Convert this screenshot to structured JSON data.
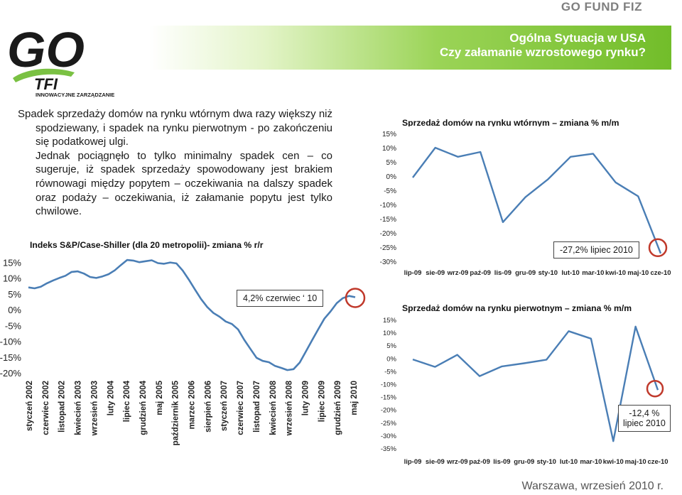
{
  "header": {
    "brand": "GO FUND FIZ",
    "title_line1": "Ogólna Sytuacja w USA",
    "title_line2": "Czy załamanie wzrostowego rynku?"
  },
  "logo": {
    "main": "GO",
    "sub": "TFI",
    "tagline": "INNOWACYJNE ZARZĄDZANIE",
    "color": "#1a1a1a",
    "accent": "#7ac143"
  },
  "intro": {
    "paragraph1": "Spadek sprzedaży domów na rynku wtórnym dwa razy większy niż spodziewany, i spadek na rynku pierwotnym - po zakończeniu się podatkowej ulgi.",
    "paragraph2": "Jednak pociągnęło to tylko minimalny spadek cen – co sugeruje, iż spadek sprzedaży spowodowany jest brakiem równowagi między popytem – oczekiwania na dalszy spadek oraz podaży – oczekiwania, iż załamanie popytu jest tylko chwilowe."
  },
  "footer": {
    "text": "Warszawa, wrzesień 2010 r."
  },
  "chart_data": [
    {
      "id": "case_shiller",
      "type": "line",
      "title": "Indeks S&P/Case-Shiller (dla 20 metropolii)- zmiana % r/r",
      "ylim": [
        -20,
        15
      ],
      "yticks": [
        "15%",
        "10%",
        "5%",
        "0%",
        "-5%",
        "-10%",
        "-15%",
        "-20%"
      ],
      "x_labels": [
        "styczeń 2002",
        "czerwiec 2002",
        "listopad 2002",
        "kwiecień 2003",
        "wrzesień 2003",
        "luty 2004",
        "lipiec 2004",
        "grudzień 2004",
        "maj 2005",
        "październik 2005",
        "marzec 2006",
        "sierpień 2006",
        "styczeń 2007",
        "czerwiec 2007",
        "listopad 2007",
        "kwiecień 2008",
        "wrzesień 2008",
        "luty 2009",
        "lipiec 2009",
        "grudzień 2009",
        "maj 2010"
      ],
      "x": [
        0,
        2,
        4,
        6,
        8,
        10,
        12,
        14,
        16,
        18,
        20,
        22,
        24,
        26,
        28,
        30,
        32,
        34,
        36,
        38,
        40,
        42,
        44,
        46,
        48,
        50,
        52,
        54,
        56,
        58,
        60,
        62,
        64,
        66,
        68,
        70,
        72,
        74,
        76,
        78,
        80,
        82,
        84,
        86,
        88,
        90,
        92,
        94,
        96,
        98,
        100,
        102,
        104,
        106
      ],
      "values": [
        7.3,
        7.0,
        7.5,
        8.6,
        9.5,
        10.3,
        11.0,
        12.2,
        12.4,
        11.7,
        10.6,
        10.3,
        10.8,
        11.5,
        12.7,
        14.4,
        16.0,
        15.8,
        15.3,
        15.6,
        15.9,
        15.0,
        14.8,
        15.2,
        14.9,
        12.7,
        9.8,
        6.7,
        3.6,
        1.1,
        -0.8,
        -2.0,
        -3.5,
        -4.3,
        -6.0,
        -9.3,
        -12.2,
        -15.0,
        -16.0,
        -16.4,
        -17.6,
        -18.2,
        -18.9,
        -18.6,
        -16.5,
        -13.0,
        -9.5,
        -6.0,
        -2.6,
        -0.3,
        2.3,
        3.9,
        4.6,
        4.2
      ],
      "callout": "4,2% czerwiec ‘ 10"
    },
    {
      "id": "existing_home_sales",
      "type": "line",
      "title": "Sprzedaż domów na rynku wtórnym – zmiana % m/m",
      "ylim": [
        -30,
        15
      ],
      "yticks": [
        "15%",
        "10%",
        "5%",
        "0%",
        "-5%",
        "-10%",
        "-15%",
        "-20%",
        "-25%",
        "-30%"
      ],
      "categories": [
        "lip-09",
        "sie-09",
        "wrz-09",
        "paź-09",
        "lis-09",
        "gru-09",
        "sty-10",
        "lut-10",
        "mar-10",
        "kwi-10",
        "maj-10",
        "cze-10"
      ],
      "values": [
        -0.5,
        10.0,
        6.8,
        8.5,
        -16.2,
        -7.4,
        -1.1,
        6.8,
        7.9,
        -2.2,
        -7.1,
        -27.2
      ],
      "callout": "-27,2% lipiec 2010"
    },
    {
      "id": "new_home_sales",
      "type": "line",
      "title": "Sprzedaż domów na rynku pierwotnym – zmiana % m/m",
      "ylim": [
        -35,
        15
      ],
      "yticks": [
        "15%",
        "10%",
        "5%",
        "0%",
        "-5%",
        "-10%",
        "-15%",
        "-20%",
        "-25%",
        "-30%",
        "-35%"
      ],
      "categories": [
        "lip-09",
        "sie-09",
        "wrz-09",
        "paź-09",
        "lis-09",
        "gru-09",
        "sty-10",
        "lut-10",
        "mar-10",
        "kwi-10",
        "maj-10",
        "cze-10"
      ],
      "values": [
        -0.5,
        -3.4,
        1.3,
        -7.0,
        -3.2,
        -2.0,
        -0.6,
        10.5,
        7.6,
        -32.3,
        12.3,
        -12.4
      ],
      "callout_line1": "-12,4 %",
      "callout_line2": "lipiec 2010"
    }
  ],
  "colors": {
    "line": "#4a7eb5",
    "grid": "#cccccc",
    "marker": "#c0392b"
  }
}
